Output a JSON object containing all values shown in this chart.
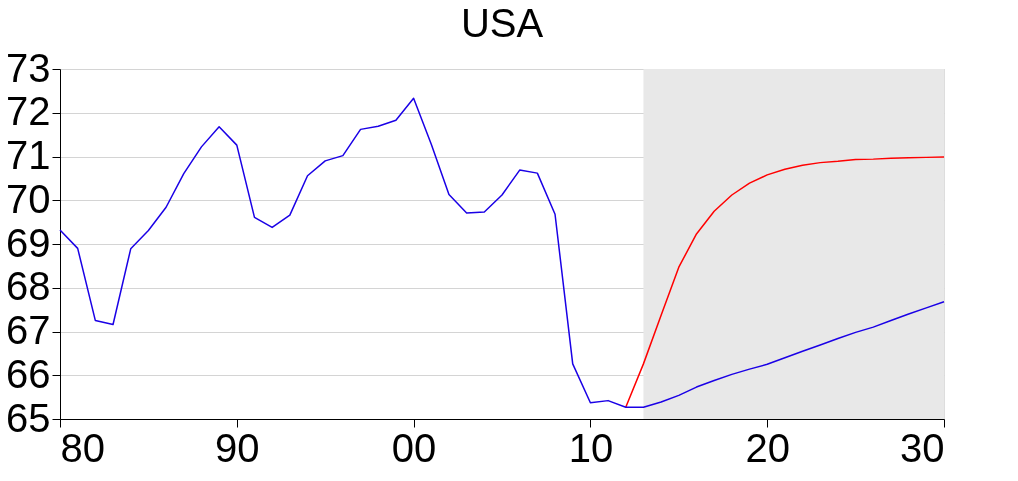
{
  "chart_data": {
    "type": "line",
    "title": "USA",
    "xlim": [
      1980,
      2030
    ],
    "xticks": [
      {
        "value": 1980,
        "label": "80"
      },
      {
        "value": 1990,
        "label": "90"
      },
      {
        "value": 2000,
        "label": "00"
      },
      {
        "value": 2010,
        "label": "10"
      },
      {
        "value": 2020,
        "label": "20"
      },
      {
        "value": 2030,
        "label": "30"
      }
    ],
    "ylim": [
      65,
      73
    ],
    "yticks": [
      65,
      66,
      67,
      68,
      69,
      70,
      71,
      72,
      73
    ],
    "grid": "y",
    "legend": false,
    "marker": "none",
    "line_style": "solid",
    "bands": [
      {
        "axis": "x",
        "from": 2013,
        "to": 2030,
        "color": "#e8e8e8"
      }
    ],
    "series": [
      {
        "color": "#ff0000",
        "x": [
          2012,
          2013,
          2014,
          2015,
          2016,
          2017,
          2018,
          2019,
          2020,
          2021,
          2022,
          2023,
          2024,
          2025,
          2026,
          2027,
          2028,
          2029,
          2030
        ],
        "values": [
          65.27,
          66.26,
          67.37,
          68.47,
          69.23,
          69.75,
          70.12,
          70.39,
          70.58,
          70.71,
          70.8,
          70.86,
          70.89,
          70.93,
          70.94,
          70.96,
          70.97,
          70.98,
          70.99
        ]
      },
      {
        "color": "#1a00e6",
        "x": [
          1980,
          1981,
          1982,
          1983,
          1984,
          1985,
          1986,
          1987,
          1988,
          1989,
          1990,
          1991,
          1992,
          1993,
          1994,
          1995,
          1996,
          1997,
          1998,
          1999,
          2000,
          2001,
          2002,
          2003,
          2004,
          2005,
          2006,
          2007,
          2008,
          2009,
          2010,
          2011,
          2012,
          2013,
          2014,
          2015,
          2016,
          2017,
          2018,
          2019,
          2020,
          2021,
          2022,
          2023,
          2024,
          2025,
          2026,
          2027,
          2028,
          2029,
          2030
        ],
        "values": [
          69.32,
          68.9,
          67.25,
          67.16,
          68.89,
          69.31,
          69.84,
          70.61,
          71.22,
          71.68,
          71.26,
          69.61,
          69.38,
          69.66,
          70.56,
          70.9,
          71.02,
          71.62,
          71.69,
          71.83,
          72.33,
          71.28,
          70.13,
          69.71,
          69.73,
          70.12,
          70.69,
          70.62,
          69.68,
          66.26,
          65.37,
          65.42,
          65.27,
          65.27,
          65.39,
          65.54,
          65.73,
          65.88,
          66.02,
          66.14,
          66.25,
          66.4,
          66.55,
          66.69,
          66.84,
          66.98,
          67.1,
          67.25,
          67.4,
          67.54,
          67.68
        ]
      }
    ]
  }
}
